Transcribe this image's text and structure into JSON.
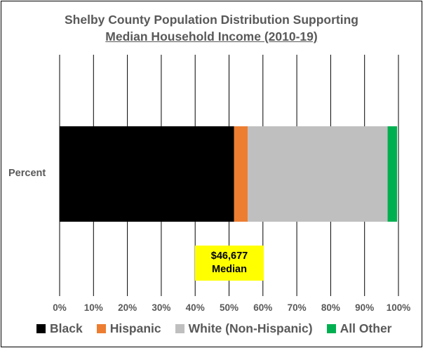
{
  "chart_data": {
    "type": "bar",
    "orientation": "horizontal",
    "stacked": true,
    "title_line1": "Shelby County Population Distribution Supporting",
    "title_line2": "Median Household Income (2010-19)",
    "categories": [
      "Percent"
    ],
    "series": [
      {
        "name": "Black",
        "values": [
          51.5
        ],
        "color": "#000000"
      },
      {
        "name": "Hispanic",
        "values": [
          4.0
        ],
        "color": "#ED7D31"
      },
      {
        "name": "White (Non-Hispanic)",
        "values": [
          41.3
        ],
        "color": "#BFBFBF"
      },
      {
        "name": "All Other",
        "values": [
          2.8
        ],
        "color": "#00B050"
      }
    ],
    "xlim": [
      0,
      100
    ],
    "x_ticks": [
      "0%",
      "10%",
      "20%",
      "30%",
      "40%",
      "50%",
      "60%",
      "70%",
      "80%",
      "90%",
      "100%"
    ],
    "grid": "vertical",
    "legend": "bottom",
    "annotation": {
      "line1": "$46,677",
      "line2": "Median",
      "color": "#FFFF00"
    }
  }
}
